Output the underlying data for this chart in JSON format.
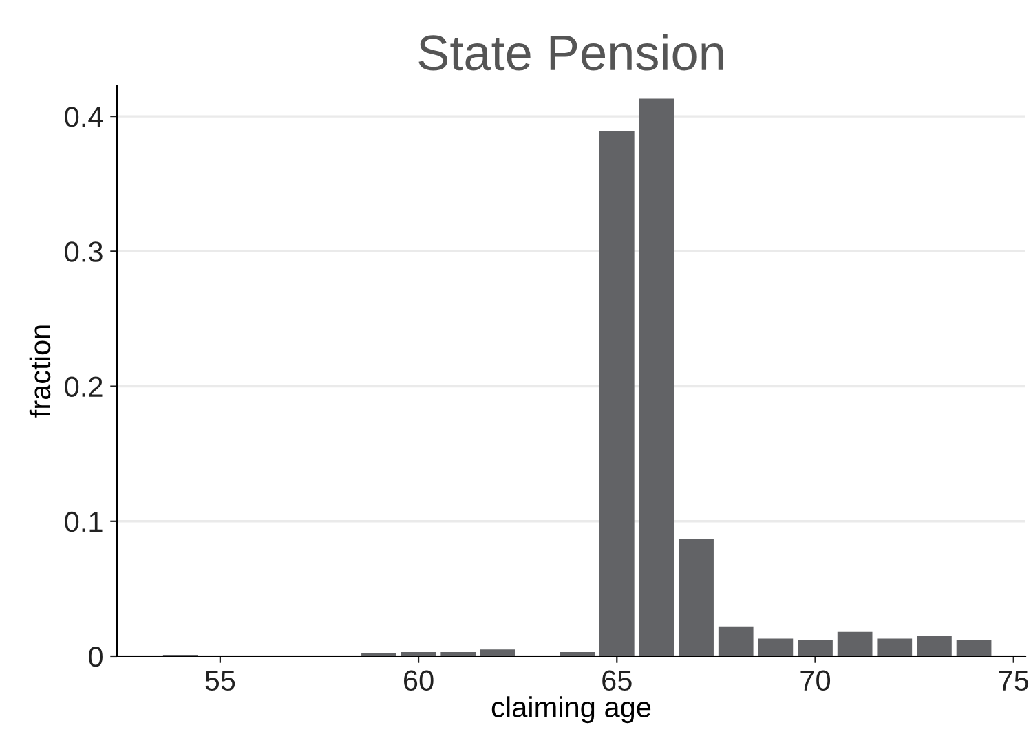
{
  "chart_data": {
    "type": "histogram",
    "title": "State Pension",
    "xlabel": "claiming age",
    "ylabel": "fraction",
    "bins": [
      53.5,
      54.5,
      55.5,
      56.5,
      57.5,
      58.5,
      59.5,
      60.5,
      61.5,
      62.5,
      63.5,
      64.5,
      65.5,
      66.5,
      67.5,
      68.5,
      69.5,
      70.5,
      71.5,
      72.5,
      73.5,
      74.5
    ],
    "values": [
      0.001,
      0,
      0,
      0,
      0,
      0.002,
      0.003,
      0.003,
      0.005,
      0,
      0.003,
      0.389,
      0.413,
      0.087,
      0.022,
      0.013,
      0.012,
      0.018,
      0.013,
      0.015,
      0.012
    ],
    "color": "#626366",
    "xlim": [
      52.4,
      75.3
    ],
    "ylim": [
      0,
      0.423
    ],
    "xticks": [
      55,
      60,
      65,
      70,
      75
    ],
    "yticks": [
      0,
      0.1,
      0.2,
      0.3,
      0.4
    ],
    "grid": "y"
  }
}
